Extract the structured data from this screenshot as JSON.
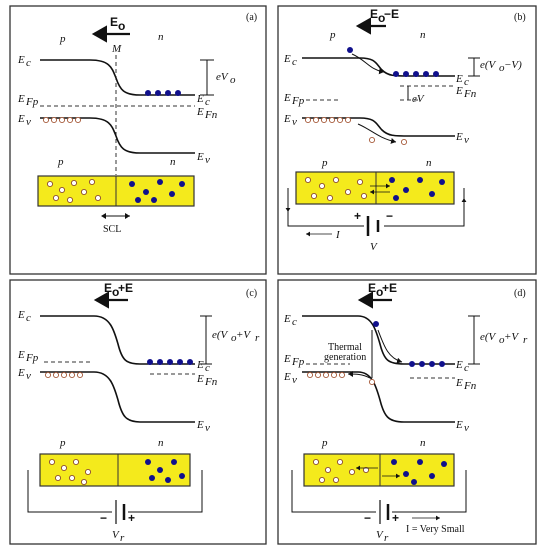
{
  "panels": [
    {
      "tag": "(a)",
      "field_label": "E",
      "field_sub": "o",
      "field_extra": "",
      "p_label": "p",
      "n_label": "n",
      "ec": "E",
      "ec_sub": "c",
      "ev": "E",
      "ev_sub": "v",
      "efp": "E",
      "efp_sub": "Fp",
      "efn": "E",
      "efn_sub": "Fn",
      "barrier": "eV",
      "barrier_sub": "o",
      "junction": "M",
      "scl": "SCL"
    },
    {
      "tag": "(b)",
      "field_label": "E",
      "field_sub": "o",
      "field_extra": "−E",
      "p_label": "p",
      "n_label": "n",
      "barrier": "e(V",
      "barrier_mid": "o",
      "barrier_tail": "−V)",
      "shift": "eV",
      "current": "I",
      "voltage": "V",
      "plus": "+",
      "minus": "−"
    },
    {
      "tag": "(c)",
      "field_label": "E",
      "field_sub": "o",
      "field_extra": "+E",
      "p_label": "p",
      "n_label": "n",
      "barrier": "e(V",
      "barrier_mid": "o",
      "barrier_tail": "+V",
      "barrier_r": "r",
      "voltage": "V",
      "voltage_sub": "r",
      "plus": "+",
      "minus": "−"
    },
    {
      "tag": "(d)",
      "field_label": "E",
      "field_sub": "o",
      "field_extra": "+E",
      "p_label": "p",
      "n_label": "n",
      "thermal_1": "Thermal",
      "thermal_2": "generation",
      "voltage": "V",
      "voltage_sub": "r",
      "plus": "+",
      "minus": "−",
      "current_note": "I = Very Small"
    }
  ],
  "colors": {
    "semiconductor": "#f4ea1c",
    "electron": "#10108c",
    "hole_outline": "#a65a3a"
  }
}
